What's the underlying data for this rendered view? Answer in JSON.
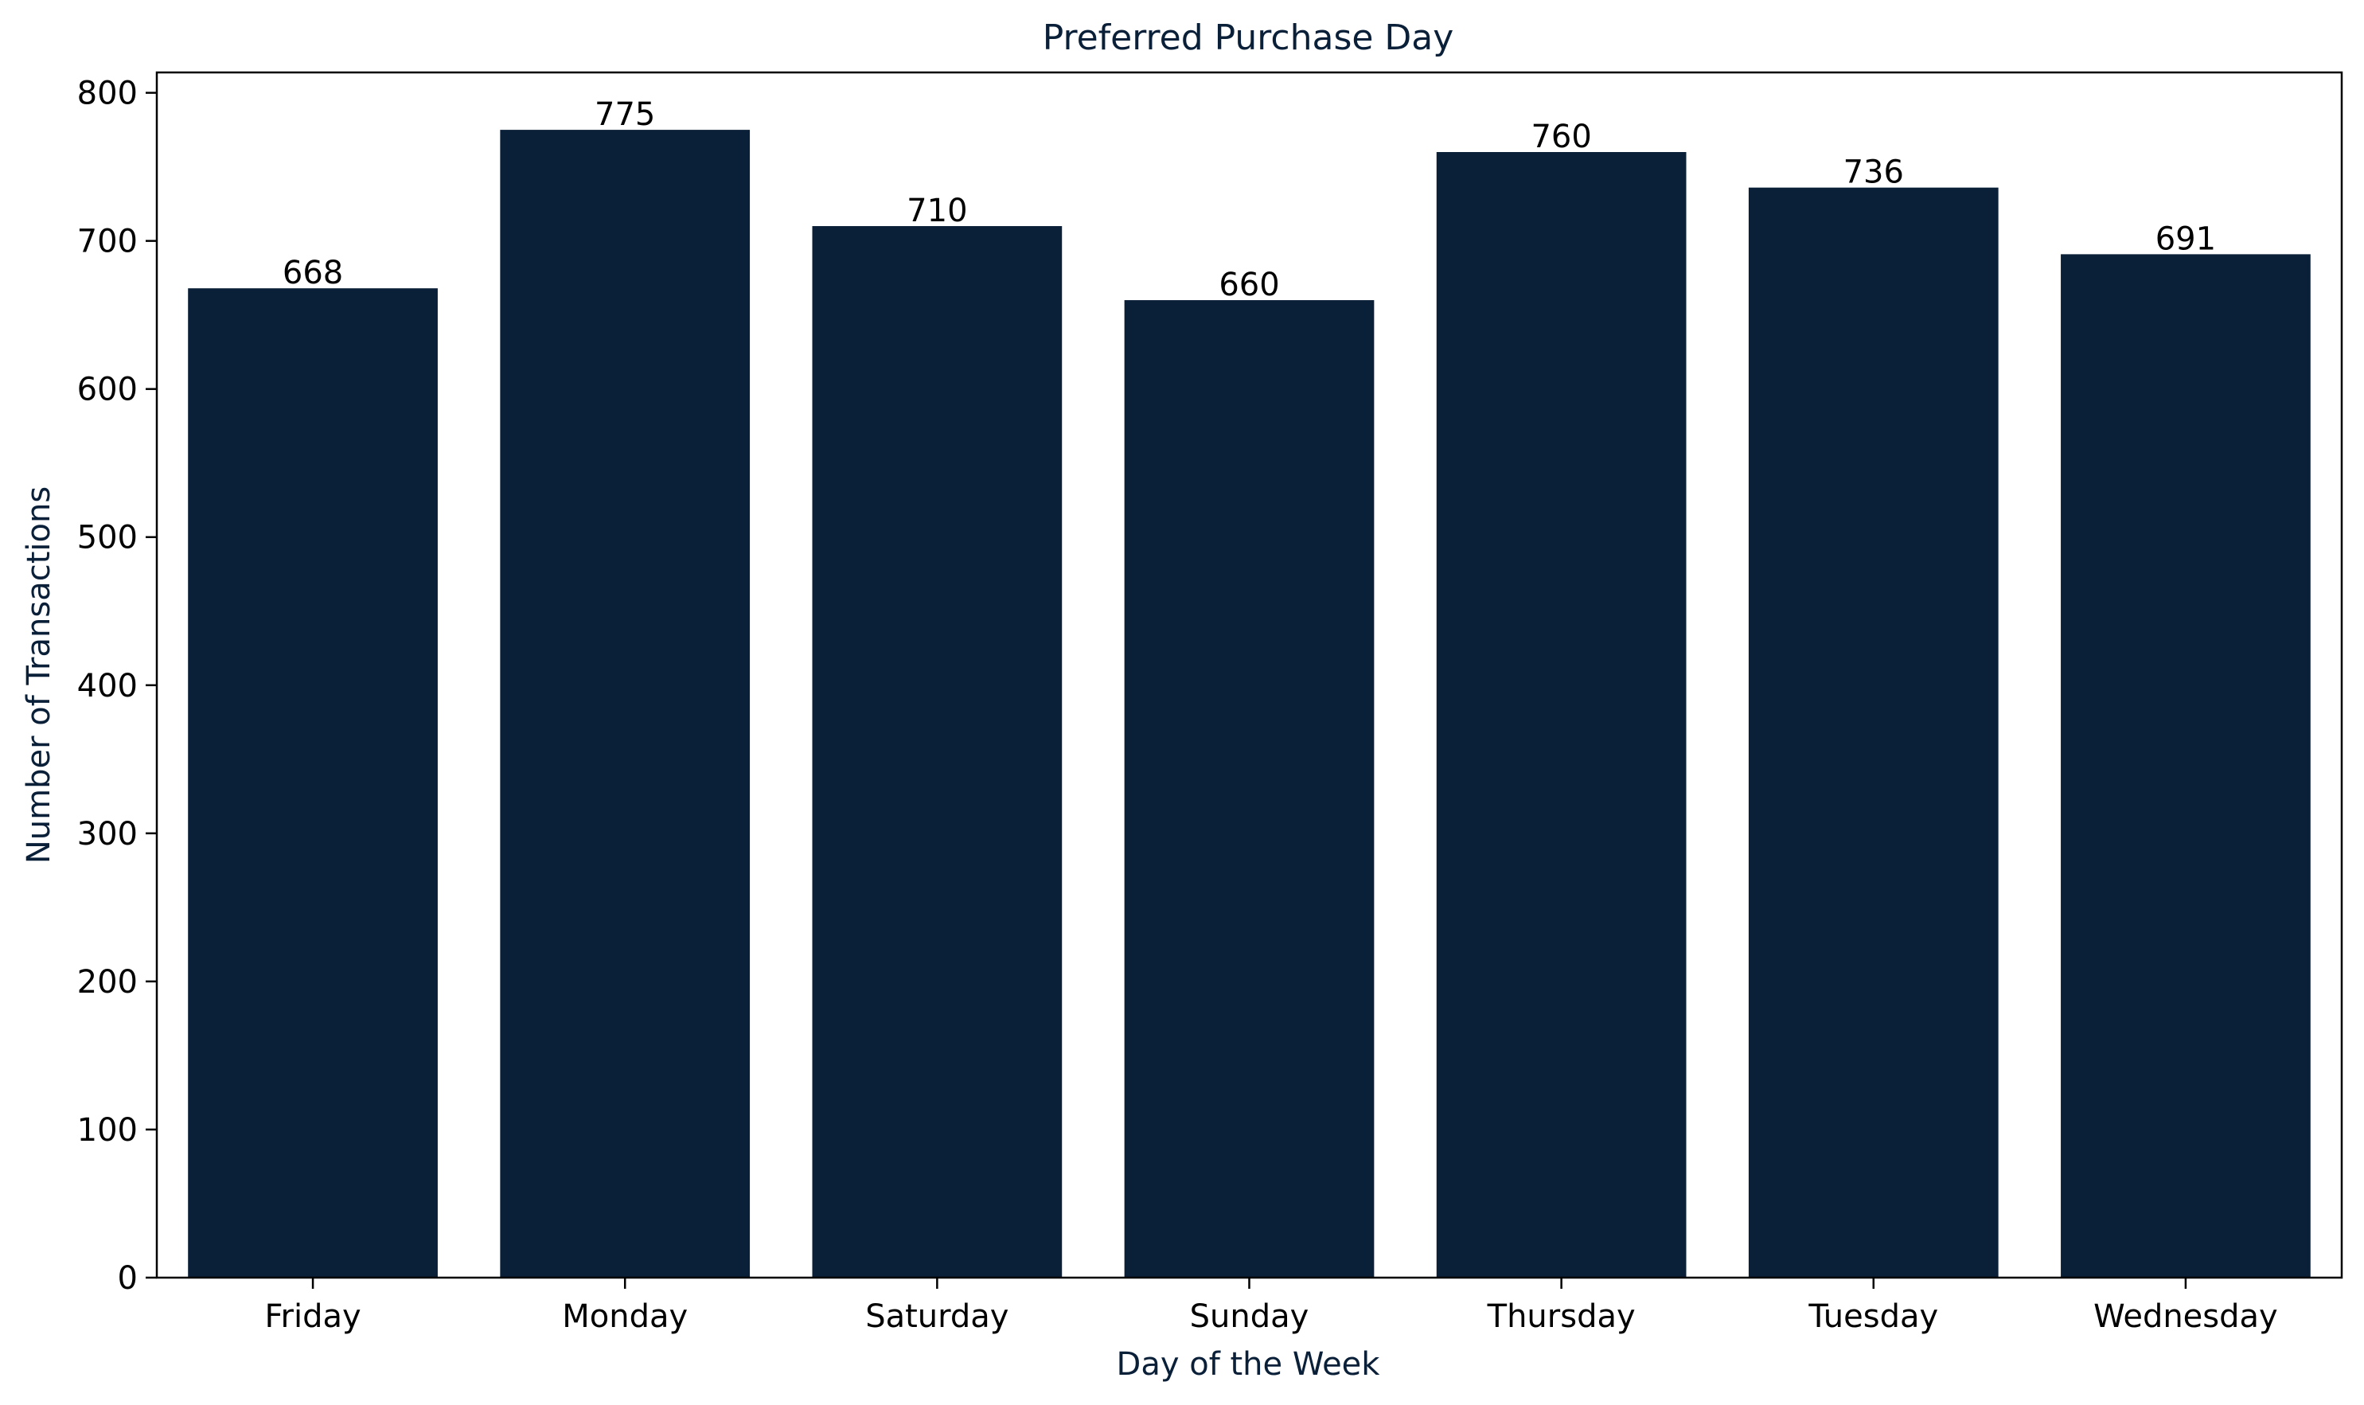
{
  "colors": {
    "bar": "#0a1f38",
    "title_text": "#0a1f38",
    "axis_text": "#0a1f38",
    "tick_text": "#000000",
    "axes": "#000000",
    "background": "#ffffff"
  },
  "chart_data": {
    "type": "bar",
    "title": "Preferred Purchase Day",
    "xlabel": "Day of the Week",
    "ylabel": "Number of Transactions",
    "categories": [
      "Friday",
      "Monday",
      "Saturday",
      "Sunday",
      "Thursday",
      "Tuesday",
      "Wednesday"
    ],
    "values": [
      668,
      775,
      710,
      660,
      760,
      736,
      691
    ],
    "data_labels": [
      "668",
      "775",
      "710",
      "660",
      "760",
      "736",
      "691"
    ],
    "yticks": [
      0,
      100,
      200,
      300,
      400,
      500,
      600,
      700,
      800
    ],
    "ylim": [
      0,
      813.75
    ],
    "grid": false,
    "legend": "none"
  }
}
